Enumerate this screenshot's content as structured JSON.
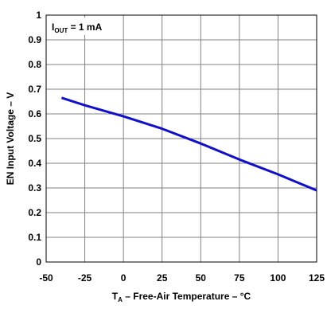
{
  "chart_data": {
    "type": "line",
    "xlabel": {
      "main": "T",
      "sub": "A",
      "rest": " – Free-Air Temperature – °C"
    },
    "ylabel": "EN Input Voltage – V",
    "xlim": [
      -50,
      125
    ],
    "ylim": [
      0,
      1
    ],
    "xticks": [
      "-50",
      "-25",
      "0",
      "25",
      "50",
      "75",
      "100",
      "125"
    ],
    "yticks": [
      "0",
      "0.1",
      "0.2",
      "0.3",
      "0.4",
      "0.5",
      "0.6",
      "0.7",
      "0.8",
      "0.9",
      "1"
    ],
    "grid": true,
    "annotation": {
      "main": "I",
      "sub": "OUT",
      "rest": " = 1 mA"
    },
    "series": [
      {
        "color": "#1010cc",
        "x": [
          -40,
          -25,
          0,
          25,
          50,
          75,
          100,
          125
        ],
        "y": [
          0.665,
          0.635,
          0.59,
          0.54,
          0.48,
          0.415,
          0.355,
          0.29
        ]
      }
    ]
  }
}
